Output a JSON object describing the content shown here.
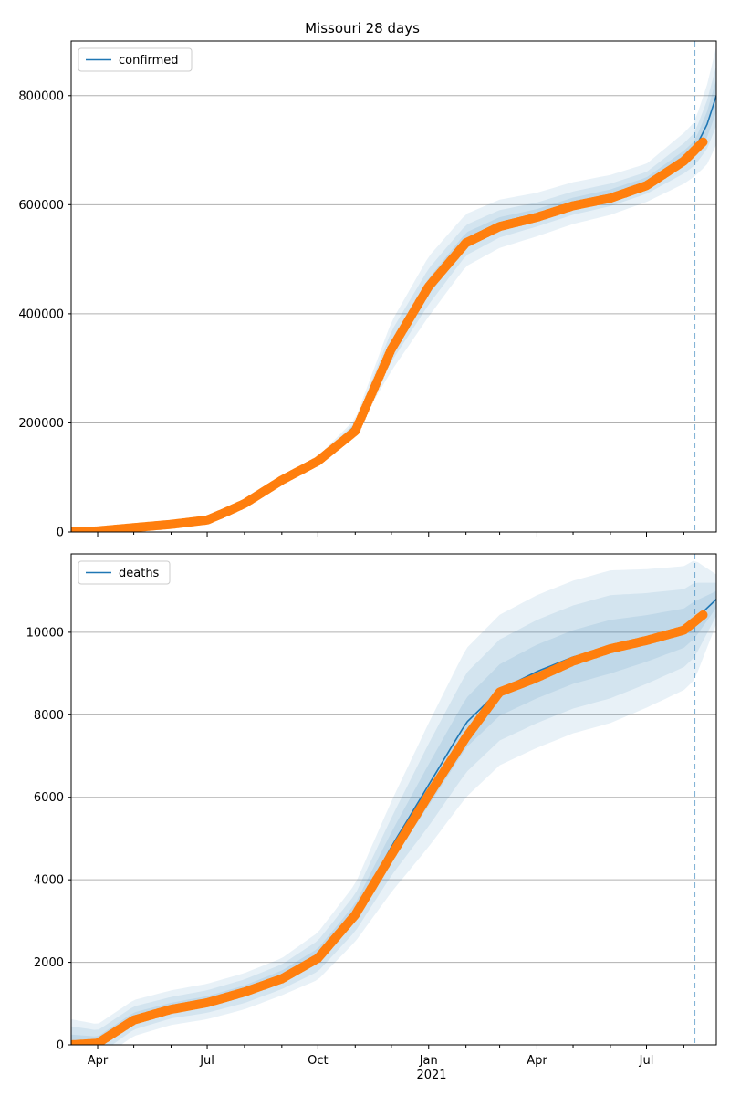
{
  "chart_data": [
    {
      "type": "line",
      "title": "Missouri 28 days",
      "xlabel": "",
      "ylabel": "",
      "x_range": [
        "2020-03-10",
        "2021-08-28"
      ],
      "ylim": [
        0,
        900000
      ],
      "yticks": [
        0,
        200000,
        400000,
        600000,
        800000
      ],
      "grid": "horizontal",
      "legend_position": "top-left",
      "forecast_start": "2021-08-10",
      "series": [
        {
          "name": "confirmed",
          "kind": "fitted-line",
          "color": "#1f77b4"
        }
      ],
      "fit_points": [
        [
          "2020-03-10",
          0
        ],
        [
          "2020-04-01",
          2000
        ],
        [
          "2020-05-01",
          8000
        ],
        [
          "2020-06-01",
          14000
        ],
        [
          "2020-07-01",
          22000
        ],
        [
          "2020-08-01",
          50000
        ],
        [
          "2020-09-01",
          95000
        ],
        [
          "2020-10-01",
          130000
        ],
        [
          "2020-11-01",
          195000
        ],
        [
          "2020-12-01",
          340000
        ],
        [
          "2021-01-01",
          450000
        ],
        [
          "2021-02-01",
          535000
        ],
        [
          "2021-03-01",
          565000
        ],
        [
          "2021-04-01",
          582000
        ],
        [
          "2021-05-01",
          603000
        ],
        [
          "2021-06-01",
          618000
        ],
        [
          "2021-07-01",
          640000
        ],
        [
          "2021-08-01",
          685000
        ],
        [
          "2021-08-10",
          702000
        ],
        [
          "2021-08-20",
          745000
        ],
        [
          "2021-08-28",
          800000
        ]
      ],
      "band_widths": [
        {
          "date": "2020-03-10",
          "w": [
            0,
            0,
            0
          ]
        },
        {
          "date": "2020-06-01",
          "w": [
            600,
            1200,
            2000
          ]
        },
        {
          "date": "2020-09-01",
          "w": [
            1500,
            3500,
            6000
          ]
        },
        {
          "date": "2020-11-01",
          "w": [
            3000,
            6000,
            12000
          ]
        },
        {
          "date": "2020-12-01",
          "w": [
            12000,
            28000,
            45000
          ]
        },
        {
          "date": "2021-01-01",
          "w": [
            15000,
            33000,
            55000
          ]
        },
        {
          "date": "2021-02-01",
          "w": [
            14000,
            28000,
            48000
          ]
        },
        {
          "date": "2021-04-01",
          "w": [
            10000,
            22000,
            40000
          ]
        },
        {
          "date": "2021-07-01",
          "w": [
            10000,
            20000,
            35000
          ]
        },
        {
          "date": "2021-08-10",
          "w": [
            15000,
            30000,
            50000
          ]
        },
        {
          "date": "2021-08-28",
          "w": [
            30000,
            55000,
            90000
          ]
        }
      ],
      "observed_points": [
        [
          "2020-03-10",
          0
        ],
        [
          "2020-04-01",
          2000
        ],
        [
          "2020-05-01",
          8000
        ],
        [
          "2020-06-01",
          14000
        ],
        [
          "2020-07-01",
          22000
        ],
        [
          "2020-07-15",
          35000
        ],
        [
          "2020-08-01",
          52000
        ],
        [
          "2020-09-01",
          95000
        ],
        [
          "2020-10-01",
          130000
        ],
        [
          "2020-11-01",
          185000
        ],
        [
          "2020-12-01",
          335000
        ],
        [
          "2021-01-01",
          450000
        ],
        [
          "2021-02-01",
          530000
        ],
        [
          "2021-03-01",
          560000
        ],
        [
          "2021-04-01",
          577000
        ],
        [
          "2021-05-01",
          598000
        ],
        [
          "2021-06-01",
          612000
        ],
        [
          "2021-07-01",
          635000
        ],
        [
          "2021-08-01",
          680000
        ],
        [
          "2021-08-17",
          715000
        ]
      ]
    },
    {
      "type": "line",
      "title": "",
      "xlabel": "",
      "ylabel": "",
      "x_range": [
        "2020-03-10",
        "2021-08-28"
      ],
      "ylim": [
        0,
        11900
      ],
      "yticks": [
        0,
        2000,
        4000,
        6000,
        8000,
        10000
      ],
      "grid": "horizontal",
      "legend_position": "top-left",
      "forecast_start": "2021-08-10",
      "series": [
        {
          "name": "deaths",
          "kind": "fitted-line",
          "color": "#1f77b4"
        }
      ],
      "fit_points": [
        [
          "2020-03-10",
          0
        ],
        [
          "2020-04-01",
          50
        ],
        [
          "2020-05-01",
          650
        ],
        [
          "2020-06-01",
          900
        ],
        [
          "2020-07-01",
          1050
        ],
        [
          "2020-08-01",
          1300
        ],
        [
          "2020-09-01",
          1650
        ],
        [
          "2020-10-01",
          2150
        ],
        [
          "2020-11-01",
          3200
        ],
        [
          "2020-12-01",
          4800
        ],
        [
          "2021-01-01",
          6300
        ],
        [
          "2021-02-01",
          7800
        ],
        [
          "2021-03-01",
          8600
        ],
        [
          "2021-04-01",
          9050
        ],
        [
          "2021-05-01",
          9400
        ],
        [
          "2021-06-01",
          9650
        ],
        [
          "2021-07-01",
          9850
        ],
        [
          "2021-08-01",
          10100
        ],
        [
          "2021-08-10",
          10300
        ],
        [
          "2021-08-28",
          10800
        ]
      ],
      "band_widths": [
        {
          "date": "2020-03-10",
          "w": [
            250,
            450,
            620
          ]
        },
        {
          "date": "2020-04-01",
          "w": [
            150,
            300,
            450
          ]
        },
        {
          "date": "2020-06-01",
          "w": [
            120,
            260,
            420
          ]
        },
        {
          "date": "2020-09-01",
          "w": [
            150,
            300,
            450
          ]
        },
        {
          "date": "2020-11-01",
          "w": [
            220,
            450,
            700
          ]
        },
        {
          "date": "2020-12-01",
          "w": [
            350,
            700,
            1100
          ]
        },
        {
          "date": "2021-01-01",
          "w": [
            500,
            1000,
            1500
          ]
        },
        {
          "date": "2021-02-01",
          "w": [
            600,
            1200,
            1800
          ]
        },
        {
          "date": "2021-04-01",
          "w": [
            650,
            1250,
            1850
          ]
        },
        {
          "date": "2021-06-01",
          "w": [
            650,
            1250,
            1850
          ]
        },
        {
          "date": "2021-08-10",
          "w": [
            450,
            900,
            1450
          ]
        },
        {
          "date": "2021-08-28",
          "w": [
            200,
            400,
            600
          ]
        }
      ],
      "observed_points": [
        [
          "2020-03-10",
          0
        ],
        [
          "2020-04-01",
          40
        ],
        [
          "2020-05-01",
          600
        ],
        [
          "2020-06-01",
          860
        ],
        [
          "2020-07-01",
          1020
        ],
        [
          "2020-08-01",
          1280
        ],
        [
          "2020-09-01",
          1600
        ],
        [
          "2020-10-01",
          2100
        ],
        [
          "2020-11-01",
          3150
        ],
        [
          "2020-12-01",
          4600
        ],
        [
          "2021-01-01",
          6050
        ],
        [
          "2021-02-01",
          7450
        ],
        [
          "2021-03-01",
          8550
        ],
        [
          "2021-04-01",
          8900
        ],
        [
          "2021-05-01",
          9300
        ],
        [
          "2021-06-01",
          9600
        ],
        [
          "2021-07-01",
          9800
        ],
        [
          "2021-08-01",
          10050
        ],
        [
          "2021-08-17",
          10420
        ]
      ]
    }
  ],
  "x_axis": {
    "tick_labels": [
      "Apr",
      "Jul",
      "Oct",
      "Jan",
      "Apr",
      "Jul"
    ],
    "tick_dates": [
      "2020-04-01",
      "2020-07-01",
      "2020-10-01",
      "2021-01-01",
      "2021-04-01",
      "2021-07-01"
    ],
    "year_label": "2021",
    "minor_tick_dates": [
      "2020-05-01",
      "2020-06-01",
      "2020-08-01",
      "2020-09-01",
      "2020-11-01",
      "2020-12-01",
      "2021-02-01",
      "2021-03-01",
      "2021-05-01",
      "2021-06-01",
      "2021-08-01"
    ]
  },
  "colors": {
    "line": "#1f77b4",
    "observed": "#ff7f0e",
    "band": "#1f77b4",
    "grid": "#b0b0b0",
    "forecast_line": "#1f77b4"
  }
}
